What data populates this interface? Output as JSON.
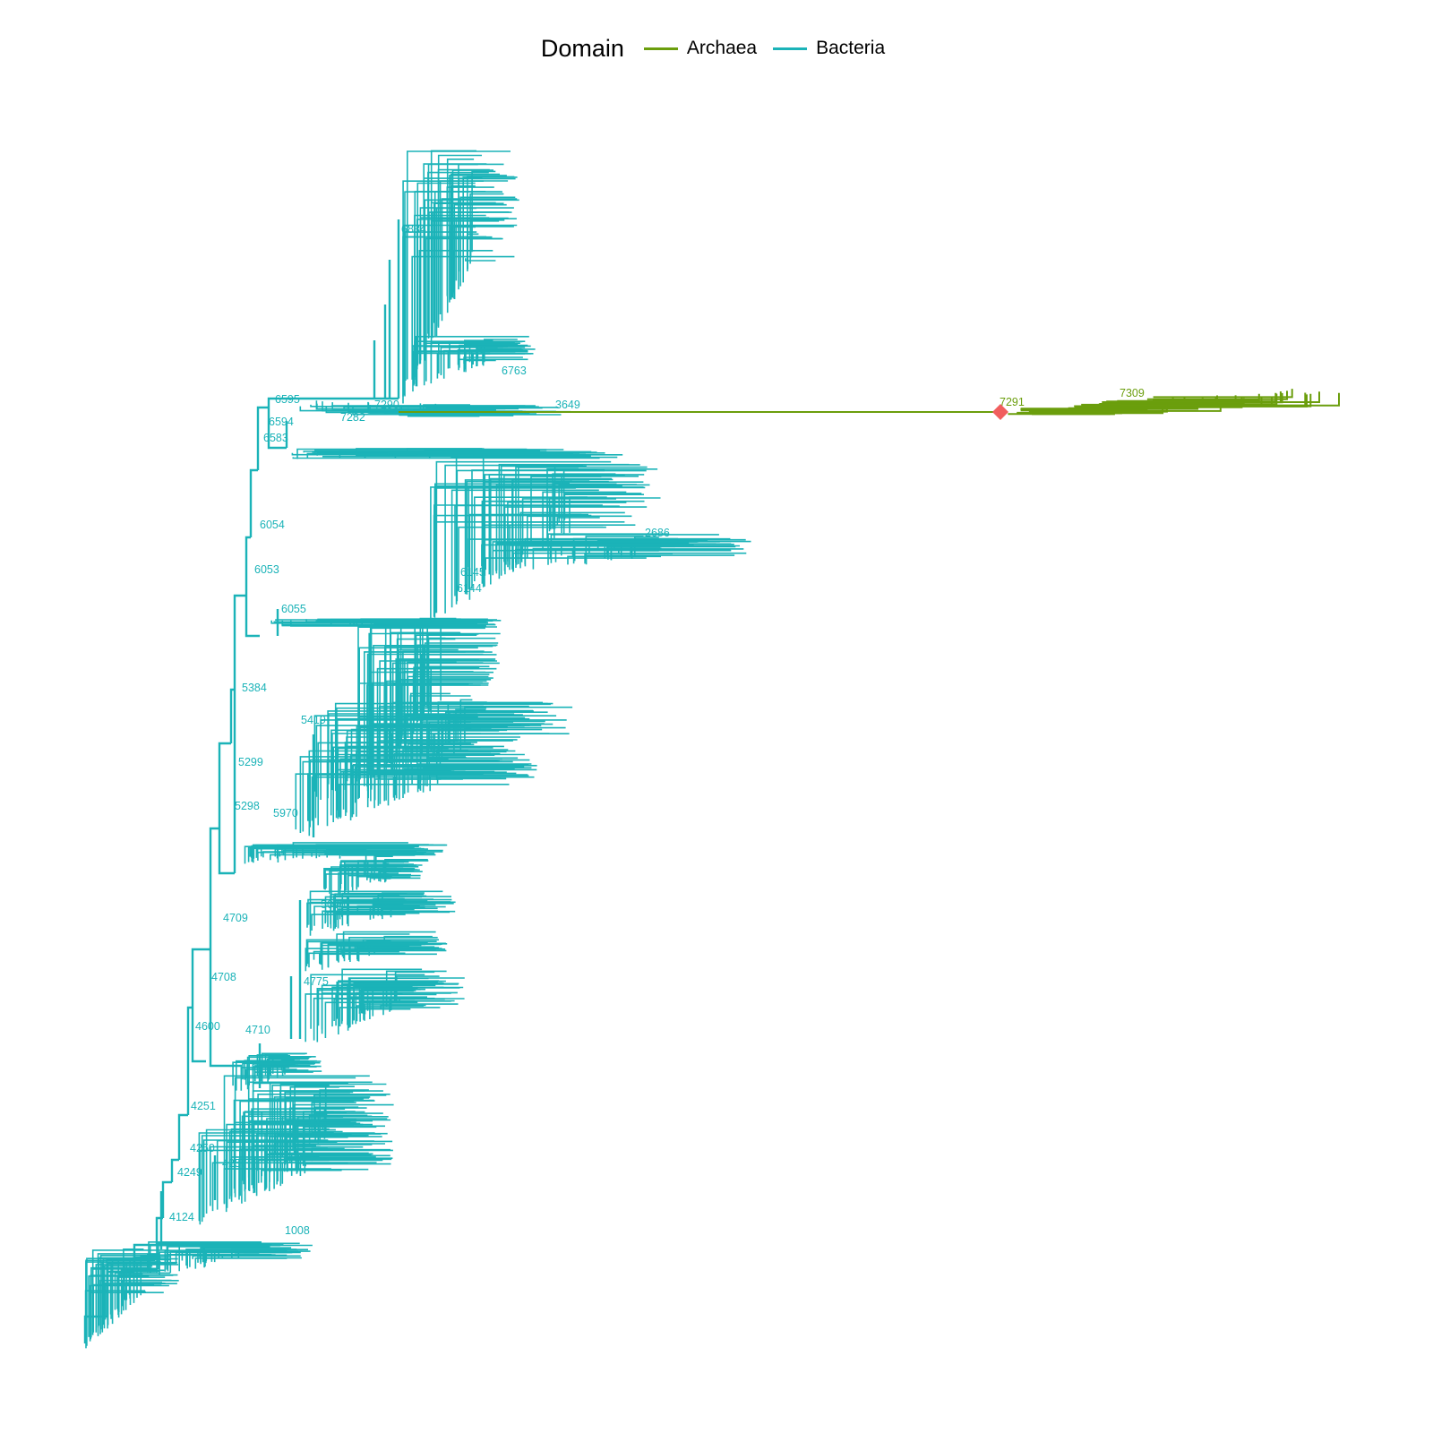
{
  "legend": {
    "title": "Domain",
    "items": [
      {
        "label": "Archaea",
        "color": "#6b9e0d"
      },
      {
        "label": "Bacteria",
        "color": "#1bb3b8"
      }
    ]
  },
  "marker": {
    "shape": "diamond",
    "color": "#f15e5e"
  },
  "labels": {
    "bacteria": [
      "6595",
      "6594",
      "6583",
      "6054",
      "6053",
      "6055",
      "5384",
      "5299",
      "5419",
      "4709",
      "4708",
      "4775",
      "4600",
      "4251",
      "4250",
      "4249",
      "4124",
      "4257",
      "5096",
      "6145",
      "6144",
      "2686",
      "7290",
      "7282",
      "3649",
      "6834",
      "6763",
      "5970",
      "5298",
      "4710",
      "1008"
    ],
    "archaea": [
      "7291",
      "7309"
    ]
  }
}
